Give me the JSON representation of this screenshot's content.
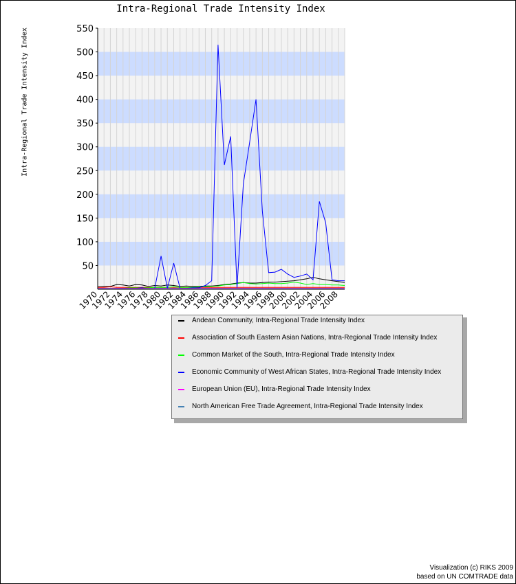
{
  "chart_data": {
    "type": "line",
    "title": "Intra-Regional Trade Intensity Index",
    "ylabel": "Intra-Regional Trade Intensity Index",
    "xlabel": "",
    "ylim": [
      0,
      550
    ],
    "xlim": [
      1970,
      2009
    ],
    "yticks": [
      50,
      100,
      150,
      200,
      250,
      300,
      350,
      400,
      450,
      500,
      550
    ],
    "xtick_labels": [
      "1970",
      "1972",
      "1974",
      "1976",
      "1978",
      "1980",
      "1982",
      "1984",
      "1986",
      "1988",
      "1990",
      "1992",
      "1994",
      "1996",
      "1998",
      "2000",
      "2002",
      "2004",
      "2006",
      "2008"
    ],
    "grid": true,
    "legend_position": "bottom-right",
    "x": [
      1970,
      1971,
      1972,
      1973,
      1974,
      1975,
      1976,
      1977,
      1978,
      1979,
      1980,
      1981,
      1982,
      1983,
      1984,
      1985,
      1986,
      1987,
      1988,
      1989,
      1990,
      1991,
      1992,
      1993,
      1994,
      1995,
      1996,
      1997,
      1998,
      1999,
      2000,
      2001,
      2002,
      2003,
      2004,
      2005,
      2006,
      2007,
      2008,
      2009
    ],
    "series": [
      {
        "name": "Andean Community, Intra-Regional Trade Intensity Index",
        "color": "#000000",
        "values": [
          5,
          6,
          6,
          10,
          9,
          7,
          10,
          9,
          6,
          8,
          7,
          9,
          8,
          6,
          7,
          6,
          6,
          7,
          7,
          8,
          10,
          11,
          13,
          14,
          13,
          13,
          14,
          15,
          15,
          16,
          17,
          18,
          20,
          22,
          25,
          22,
          20,
          18,
          16,
          14
        ]
      },
      {
        "name": "Association of South Eastern Asian Nations, Intra-Regional Trade Intensity Index",
        "color": "#ff0000",
        "values": [
          4,
          4,
          5,
          4,
          4,
          4,
          4,
          4,
          4,
          4,
          4,
          4,
          4,
          4,
          4,
          4,
          4,
          4,
          4,
          4,
          4,
          4,
          4,
          4,
          4,
          4,
          4,
          4,
          4,
          4,
          4,
          4,
          4,
          4,
          4,
          4,
          4,
          4,
          4,
          4
        ]
      },
      {
        "name": "Common Market of the South, Intra-Regional Trade Intensity Index",
        "color": "#00ff00",
        "values": [
          2,
          2,
          2,
          2,
          2,
          3,
          3,
          3,
          3,
          4,
          4,
          4,
          5,
          4,
          4,
          4,
          5,
          5,
          6,
          7,
          9,
          10,
          12,
          14,
          12,
          11,
          12,
          13,
          12,
          12,
          13,
          15,
          13,
          10,
          12,
          10,
          10,
          9,
          9,
          8
        ]
      },
      {
        "name": "Economic Community of West African States, Intra-Regional Trade Intensity Index",
        "color": "#0000ff",
        "values": [
          1,
          1,
          1,
          2,
          2,
          2,
          2,
          3,
          1,
          1,
          70,
          2,
          55,
          2,
          2,
          3,
          3,
          8,
          18,
          515,
          262,
          322,
          3,
          222,
          310,
          400,
          165,
          35,
          36,
          42,
          32,
          25,
          28,
          32,
          20,
          185,
          140,
          20,
          18,
          18
        ]
      },
      {
        "name": "European Union (EU), Intra-Regional Trade Intensity Index",
        "color": "#ff00ff",
        "values": [
          2,
          2,
          2,
          2,
          2,
          2,
          2,
          2,
          2,
          2,
          2,
          2,
          2,
          2,
          2,
          2,
          2,
          2,
          2,
          2,
          2,
          2,
          2,
          2,
          2,
          2,
          2,
          2,
          2,
          2,
          2,
          2,
          2,
          2,
          2,
          2,
          2,
          2,
          2,
          2
        ]
      },
      {
        "name": "North American Free Trade Agreement, Intra-Regional Trade Intensity Index",
        "color": "#4682b4",
        "values": [
          1,
          1,
          1,
          1,
          1,
          1,
          1,
          1,
          1,
          1,
          1,
          1,
          1,
          1,
          1,
          1,
          1,
          1,
          1,
          1,
          1,
          1,
          1,
          1,
          1,
          1,
          1,
          1,
          1,
          1,
          1,
          1,
          1,
          1,
          1,
          1,
          1,
          1,
          1,
          1
        ]
      }
    ]
  },
  "credit": {
    "line1": "Visualization (c) RIKS 2009",
    "line2": "based on UN COMTRADE data"
  }
}
